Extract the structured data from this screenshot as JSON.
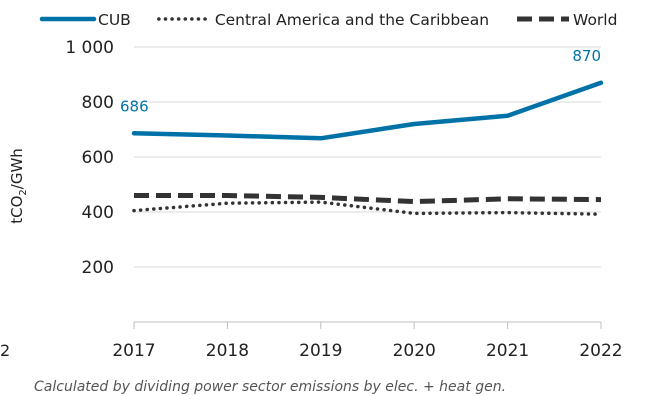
{
  "chart_data": {
    "type": "line",
    "title": "",
    "xlabel": "",
    "ylabel": "tCO2/GWh",
    "ylabel_parts": {
      "pre": "tCO",
      "sub": "2",
      "post": "/GWh"
    },
    "x": [
      "2017",
      "2018",
      "2019",
      "2020",
      "2021",
      "2022"
    ],
    "ylim": [
      0,
      1000
    ],
    "yticks": [
      200,
      400,
      600,
      800,
      1000
    ],
    "ytick_labels": [
      "200",
      "400",
      "600",
      "800",
      "1 000"
    ],
    "grid": "horizontal",
    "legend_position": "top",
    "series": [
      {
        "name": "CUB",
        "values": [
          686,
          678,
          668,
          720,
          750,
          870
        ],
        "color": "#0072A8",
        "style": "solid"
      },
      {
        "name": "Central America and the Caribbean",
        "values": [
          405,
          432,
          436,
          395,
          398,
          392
        ],
        "color": "#333333",
        "style": "dotted"
      },
      {
        "name": "World",
        "values": [
          460,
          460,
          453,
          438,
          448,
          445
        ],
        "color": "#333333",
        "style": "dashed"
      }
    ],
    "data_labels": [
      {
        "series": "CUB",
        "x": "2017",
        "text": "686"
      },
      {
        "series": "CUB",
        "x": "2022",
        "text": "870"
      }
    ]
  },
  "footnote": "Calculated by dividing power sector emissions by elec. + heat gen.",
  "stray_text": "2"
}
